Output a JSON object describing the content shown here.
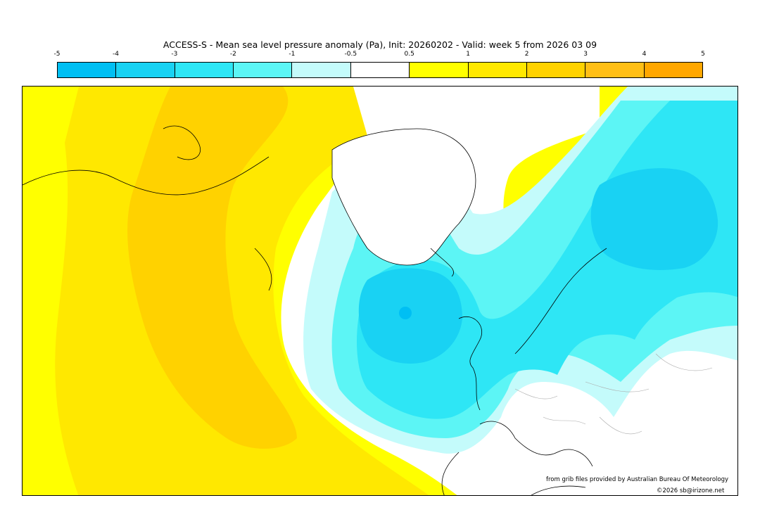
{
  "title": "ACCESS-S - Mean sea level pressure anomaly (Pa), Init: 20260202 - Valid: week 5 from 2026 03 09",
  "colorbar": {
    "ticks": [
      "-5",
      "-4",
      "-3",
      "-2",
      "-1",
      "-0.5",
      "0.5",
      "1",
      "2",
      "3",
      "4",
      "5"
    ],
    "colors": [
      "#00bff3",
      "#19d2f3",
      "#2ee6f5",
      "#5cf5f5",
      "#c4fbfb",
      "#ffffff",
      "#ffff00",
      "#ffe800",
      "#ffd200",
      "#ffbf16",
      "#ffa700"
    ]
  },
  "credits": {
    "source": "from grib files provided by Australian Bureau Of Meteorology",
    "copyright": "©2026 sb@irizone.net"
  },
  "palette": {
    "yellow": "#ffff00",
    "light_orange": "#ffe800",
    "mid_orange": "#ffd200",
    "white": "#ffffff",
    "pale_cyan": "#c4fbfb",
    "light_cyan": "#5cf5f5",
    "cyan": "#2ee6f5",
    "deep_cyan": "#19d2f3",
    "coast": "#000000",
    "borders": "#aaaaaa"
  }
}
